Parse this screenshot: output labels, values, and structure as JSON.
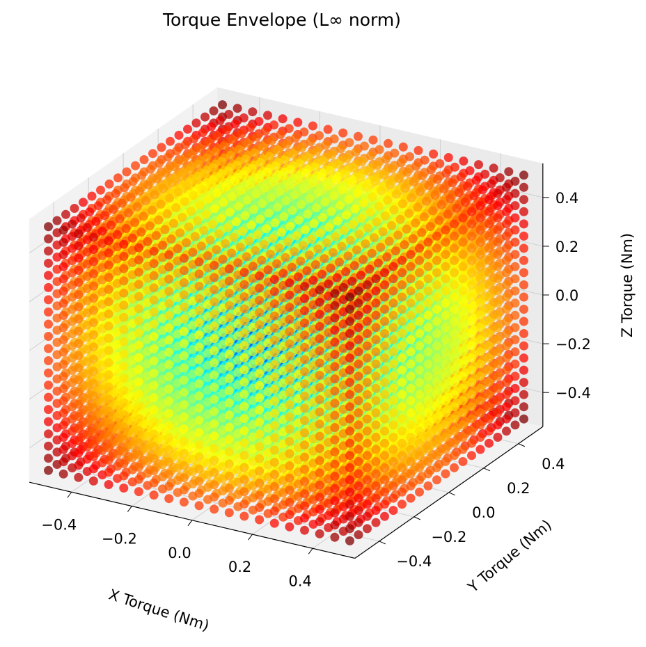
{
  "chart_data": {
    "type": "scatter3d",
    "title": "Torque Envelope (L∞ norm)",
    "xlabel": "X Torque (Nm)",
    "ylabel": "Y Torque (Nm)",
    "zlabel": "Z Torque (Nm)",
    "colormap": "jet",
    "alpha": 0.75,
    "x": [
      -0.5,
      -0.45,
      -0.4,
      -0.35,
      -0.3,
      -0.25,
      -0.2,
      -0.15,
      -0.1,
      -0.05,
      0,
      0.05,
      0.1,
      0.15,
      0.2,
      0.25,
      0.3,
      0.35,
      0.4,
      0.45,
      0.5
    ],
    "y": [
      -0.5,
      -0.45,
      -0.4,
      -0.35,
      -0.3,
      -0.25,
      -0.2,
      -0.15,
      -0.1,
      -0.05,
      0,
      0.05,
      0.1,
      0.15,
      0.2,
      0.25,
      0.3,
      0.35,
      0.4,
      0.45,
      0.5
    ],
    "z": [
      -0.5,
      -0.45,
      -0.4,
      -0.35,
      -0.3,
      -0.25,
      -0.2,
      -0.15,
      -0.1,
      -0.05,
      0,
      0.05,
      0.1,
      0.15,
      0.2,
      0.25,
      0.3,
      0.35,
      0.4,
      0.45,
      0.5
    ],
    "xlim": [
      -0.54,
      0.54
    ],
    "ylim": [
      -0.54,
      0.54
    ],
    "zlim": [
      -0.54,
      0.54
    ],
    "xticks": [
      {
        "value": -0.4,
        "label": "−0.4"
      },
      {
        "value": -0.2,
        "label": "−0.2"
      },
      {
        "value": 0,
        "label": "0.0"
      },
      0.2,
      0.4
    ],
    "yticks": [
      {
        "value": -0.4,
        "label": "−0.4"
      },
      {
        "value": -0.2,
        "label": "−0.2"
      },
      {
        "value": 0,
        "label": "0.0"
      },
      0.2,
      0.4
    ],
    "zticks": [
      {
        "value": -0.4,
        "label": "−0.4"
      },
      {
        "value": -0.2,
        "label": "−0.2"
      },
      {
        "value": 0,
        "label": "0.0"
      },
      0.2,
      0.4
    ],
    "grid": true
  }
}
